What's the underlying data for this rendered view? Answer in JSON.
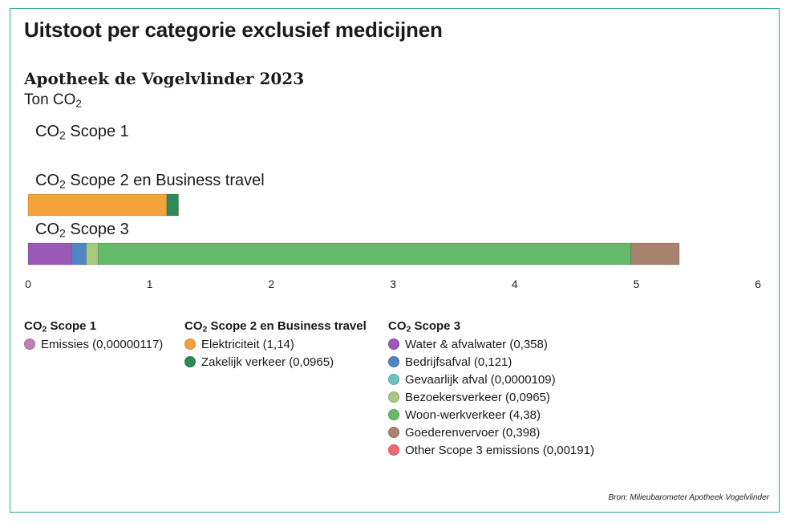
{
  "title": "Uitstoot per categorie exclusief medicijnen",
  "subtitle": "Apotheek de Vogelvlinder 2023",
  "unit": {
    "prefix": "Ton CO",
    "sub": "2"
  },
  "source": "Bron: Milieubarometer Apotheek Vogelvlinder",
  "chart_data": {
    "type": "bar",
    "orientation": "horizontal",
    "stacked": true,
    "xlim": [
      0,
      6
    ],
    "xticks": [
      "0",
      "1",
      "2",
      "3",
      "4",
      "5",
      "6"
    ],
    "grid": false,
    "categories": [
      {
        "label_prefix": "CO",
        "label_sub": "2",
        "label_suffix": " Scope 1"
      },
      {
        "label_prefix": "CO",
        "label_sub": "2",
        "label_suffix": " Scope 2 en Business travel"
      },
      {
        "label_prefix": "CO",
        "label_sub": "2",
        "label_suffix": " Scope 3"
      }
    ],
    "series": [
      {
        "name": "Emissies (0,00000117)",
        "category": 0,
        "value": 1.17e-06,
        "color": "#c27fb5"
      },
      {
        "name": "Elektriciteit (1,14)",
        "category": 1,
        "value": 1.14,
        "color": "#f4a33c"
      },
      {
        "name": "Zakelijk verkeer (0,0965)",
        "category": 1,
        "value": 0.0965,
        "color": "#2e8b57"
      },
      {
        "name": "Water & afvalwater (0,358)",
        "category": 2,
        "value": 0.358,
        "color": "#9b59b6"
      },
      {
        "name": "Bedrijfsafval (0,121)",
        "category": 2,
        "value": 0.121,
        "color": "#4f86c6"
      },
      {
        "name": "Gevaarlijk afval (0,0000109)",
        "category": 2,
        "value": 1.09e-05,
        "color": "#6cc3c0"
      },
      {
        "name": "Bezoekersverkeer (0,0965)",
        "category": 2,
        "value": 0.0965,
        "color": "#a8c97f"
      },
      {
        "name": "Woon-werkverkeer (4,38)",
        "category": 2,
        "value": 4.38,
        "color": "#66bb6a"
      },
      {
        "name": "Goederenvervoer (0,398)",
        "category": 2,
        "value": 0.398,
        "color": "#a98370"
      },
      {
        "name": "Other Scope 3 emissions (0,00191)",
        "category": 2,
        "value": 0.00191,
        "color": "#ef6b73"
      }
    ]
  },
  "legend": [
    {
      "head_prefix": "CO",
      "head_sub": "2",
      "head_suffix": " Scope 1",
      "items": [
        {
          "label": "Emissies (0,00000117)",
          "color": "#c27fb5"
        }
      ]
    },
    {
      "head_prefix": "CO",
      "head_sub": "2",
      "head_suffix": " Scope 2 en Business travel",
      "items": [
        {
          "label": "Elektriciteit (1,14)",
          "color": "#f4a33c"
        },
        {
          "label": "Zakelijk verkeer (0,0965)",
          "color": "#2e8b57"
        }
      ]
    },
    {
      "head_prefix": "CO",
      "head_sub": "2",
      "head_suffix": " Scope 3",
      "items": [
        {
          "label": "Water & afvalwater (0,358)",
          "color": "#9b59b6"
        },
        {
          "label": "Bedrijfsafval (0,121)",
          "color": "#4f86c6"
        },
        {
          "label": "Gevaarlijk afval (0,0000109)",
          "color": "#6cc3c0"
        },
        {
          "label": "Bezoekersverkeer (0,0965)",
          "color": "#a8c97f"
        },
        {
          "label": "Woon-werkverkeer (4,38)",
          "color": "#66bb6a"
        },
        {
          "label": "Goederenvervoer (0,398)",
          "color": "#a98370"
        },
        {
          "label": "Other Scope 3 emissions (0,00191)",
          "color": "#ef6b73"
        }
      ]
    }
  ]
}
